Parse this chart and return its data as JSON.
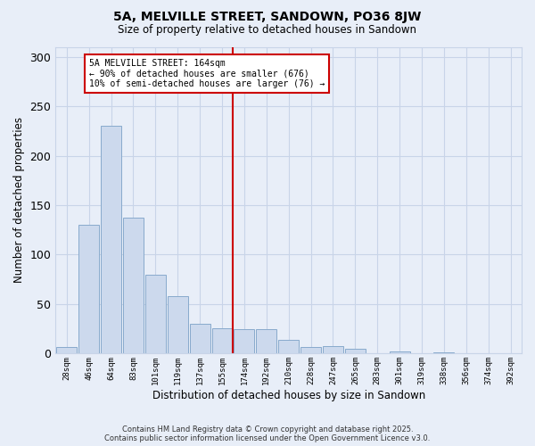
{
  "title": "5A, MELVILLE STREET, SANDOWN, PO36 8JW",
  "subtitle": "Size of property relative to detached houses in Sandown",
  "xlabel": "Distribution of detached houses by size in Sandown",
  "ylabel": "Number of detached properties",
  "bin_labels": [
    "28sqm",
    "46sqm",
    "64sqm",
    "83sqm",
    "101sqm",
    "119sqm",
    "137sqm",
    "155sqm",
    "174sqm",
    "192sqm",
    "210sqm",
    "228sqm",
    "247sqm",
    "265sqm",
    "283sqm",
    "301sqm",
    "319sqm",
    "338sqm",
    "356sqm",
    "374sqm",
    "392sqm"
  ],
  "bar_values": [
    7,
    130,
    230,
    137,
    80,
    58,
    30,
    26,
    25,
    25,
    14,
    7,
    8,
    5,
    0,
    2,
    0,
    1,
    0,
    0,
    0
  ],
  "bar_color": "#ccd9ed",
  "bar_edge_color": "#88aacc",
  "vline_x_index": 8,
  "vline_color": "#cc0000",
  "annotation_text": "5A MELVILLE STREET: 164sqm\n← 90% of detached houses are smaller (676)\n10% of semi-detached houses are larger (76) →",
  "annotation_box_color": "#ffffff",
  "annotation_box_edge": "#cc0000",
  "grid_color": "#c8d4e8",
  "background_color": "#e8eef8",
  "ylim": [
    0,
    310
  ],
  "yticks": [
    0,
    50,
    100,
    150,
    200,
    250,
    300
  ],
  "footnote1": "Contains HM Land Registry data © Crown copyright and database right 2025.",
  "footnote2": "Contains public sector information licensed under the Open Government Licence v3.0."
}
